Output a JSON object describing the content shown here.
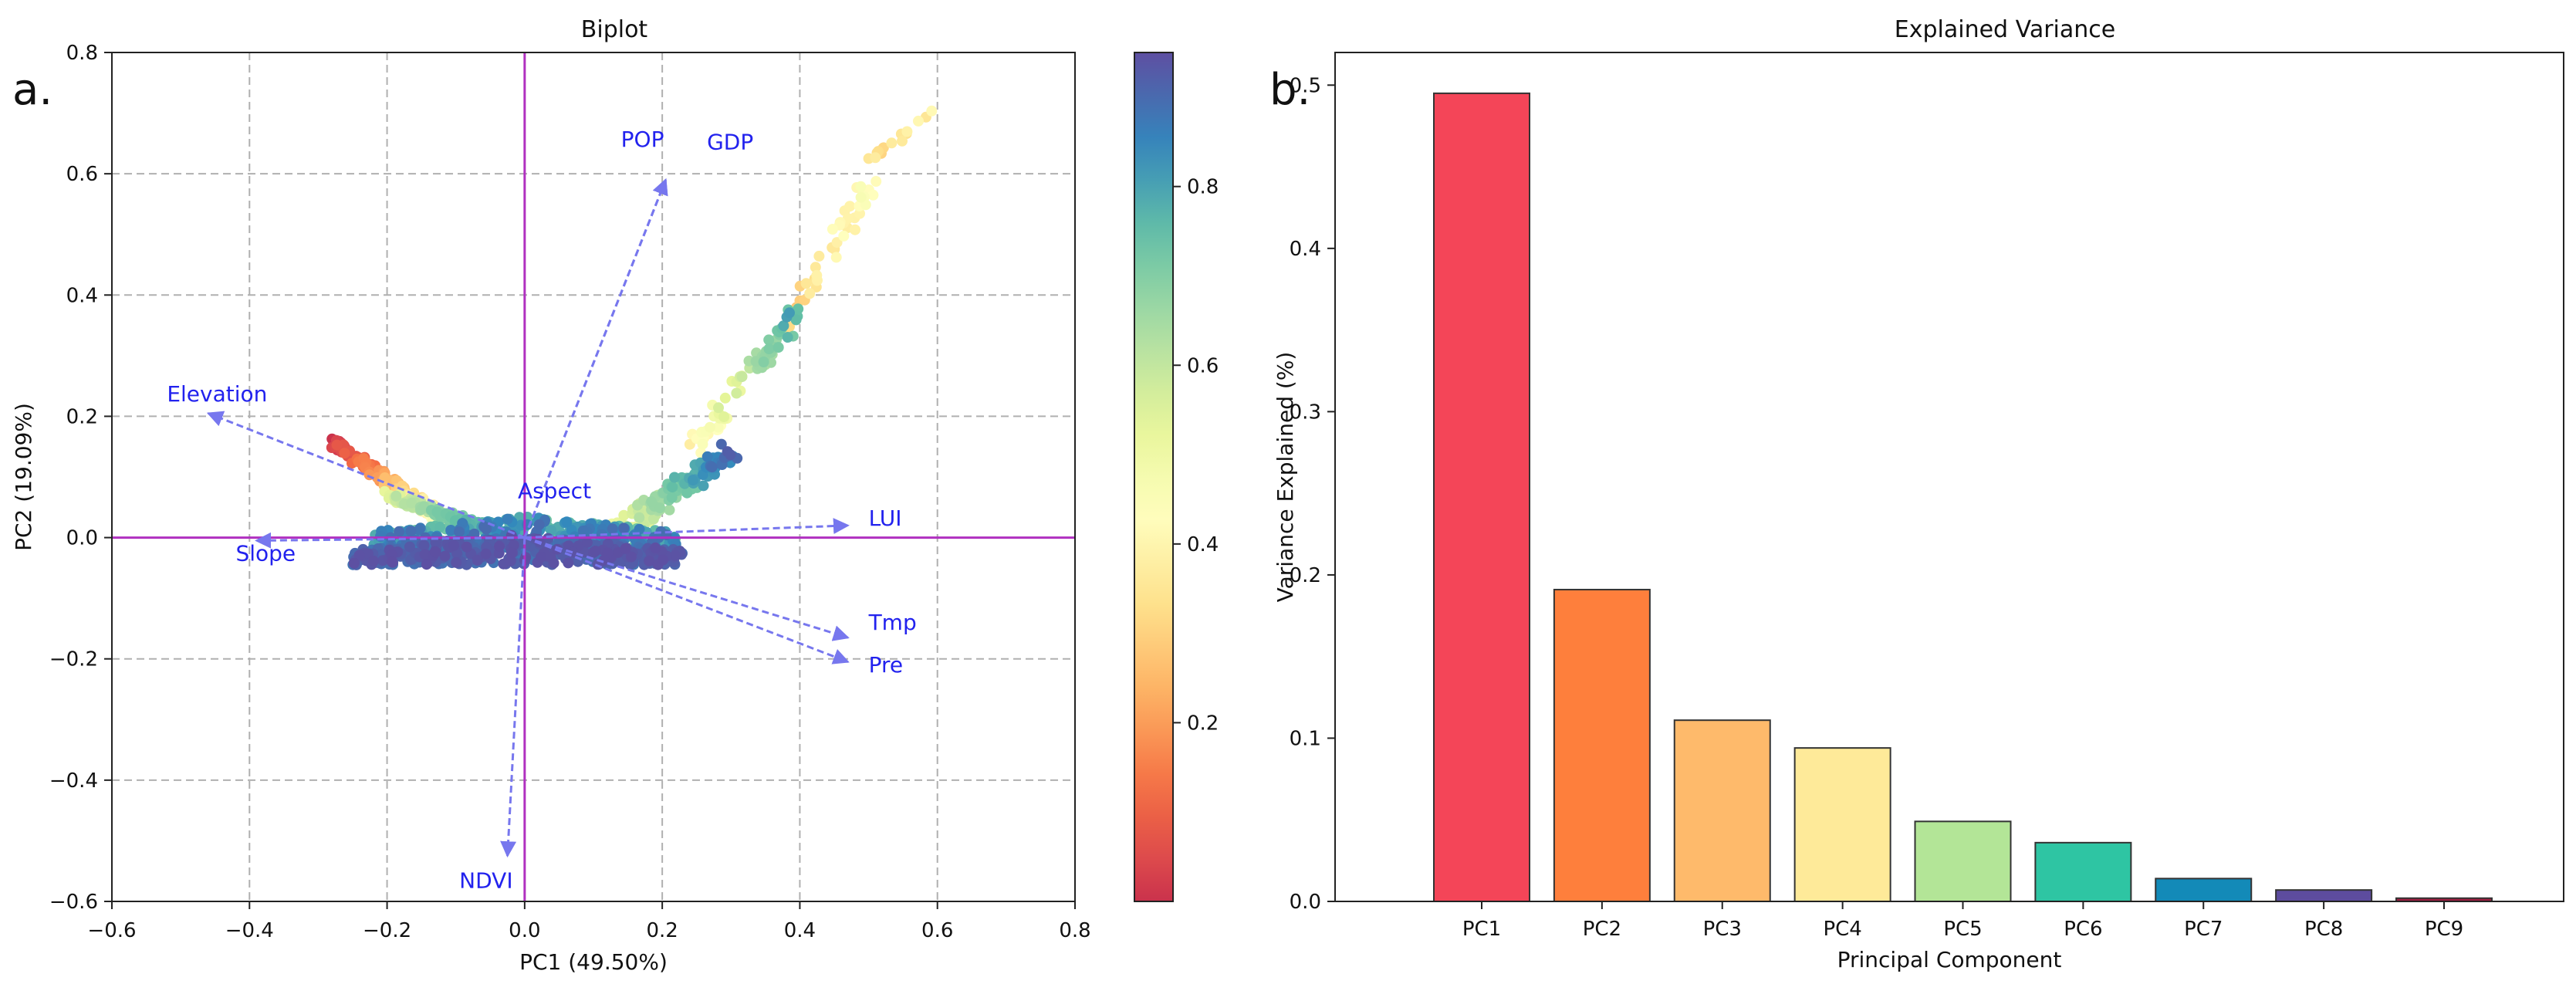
{
  "chart_data": [
    {
      "type": "scatter",
      "panel_label": "a.",
      "title": "Biplot",
      "xlabel": "PC1 (49.50%)",
      "ylabel": "PC2 (19.09%)",
      "xlim": [
        -0.6,
        0.8
      ],
      "ylim": [
        -0.6,
        0.8
      ],
      "xticks": [
        -0.6,
        -0.4,
        -0.2,
        0.0,
        0.2,
        0.4,
        0.6,
        0.8
      ],
      "yticks": [
        -0.6,
        -0.4,
        -0.2,
        0.0,
        0.2,
        0.4,
        0.6,
        0.8
      ],
      "xtick_labels": [
        "−0.6",
        "−0.4",
        "−0.2",
        "0.0",
        "0.2",
        "0.4",
        "0.6",
        "0.8"
      ],
      "ytick_labels": [
        "−0.6",
        "−0.4",
        "−0.2",
        "0.0",
        "0.2",
        "0.4",
        "0.6",
        "0.8"
      ],
      "grid": true,
      "zero_lines_color": "#b030c0",
      "arrow_color": "#7777ee",
      "label_color": "#2222ee",
      "colormap": "Spectral",
      "colorbar": {
        "range": [
          0.0,
          0.95
        ],
        "ticks": [
          0.2,
          0.4,
          0.6,
          0.8
        ],
        "tick_labels": [
          "0.2",
          "0.4",
          "0.6",
          "0.8"
        ]
      },
      "loadings": [
        {
          "name": "POP",
          "x": 0.205,
          "y": 0.59,
          "label_x": 0.14,
          "label_y": 0.645
        },
        {
          "name": "GDP",
          "x": 0.205,
          "y": 0.59,
          "label_x": 0.265,
          "label_y": 0.64
        },
        {
          "name": "Elevation",
          "x": -0.46,
          "y": 0.205,
          "label_x": -0.52,
          "label_y": 0.225
        },
        {
          "name": "Aspect",
          "x": 0.0,
          "y": 0.0,
          "label_x": -0.01,
          "label_y": 0.065
        },
        {
          "name": "LUI",
          "x": 0.47,
          "y": 0.02,
          "label_x": 0.5,
          "label_y": 0.02
        },
        {
          "name": "Slope",
          "x": -0.39,
          "y": -0.005,
          "label_x": -0.42,
          "label_y": -0.038
        },
        {
          "name": "Tmp",
          "x": 0.47,
          "y": -0.165,
          "label_x": 0.5,
          "label_y": -0.152
        },
        {
          "name": "Pre",
          "x": 0.47,
          "y": -0.205,
          "label_x": 0.5,
          "label_y": -0.222
        },
        {
          "name": "NDVI",
          "x": -0.025,
          "y": -0.525,
          "label_x": -0.095,
          "label_y": -0.578
        }
      ],
      "point_groups": [
        {
          "kind": "cloud",
          "x0": -0.25,
          "x1": 0.23,
          "y0": -0.045,
          "y1": 0.005,
          "n": 420,
          "c0": 0.88,
          "c1": 0.95
        },
        {
          "kind": "cloud",
          "x0": -0.22,
          "x1": 0.22,
          "y0": -0.015,
          "y1": 0.035,
          "n": 320,
          "c0": 0.72,
          "c1": 0.9
        },
        {
          "kind": "band",
          "x0": -0.28,
          "x1": -0.12,
          "y0": 0.155,
          "y1": 0.03,
          "n": 140,
          "c0": 0.0,
          "c1": 0.45,
          "spread": 0.018
        },
        {
          "kind": "band",
          "x0": -0.2,
          "x1": -0.02,
          "y0": 0.07,
          "y1": 0.0,
          "n": 120,
          "c0": 0.55,
          "c1": 0.85,
          "spread": 0.015
        },
        {
          "kind": "band",
          "x0": 0.12,
          "x1": 0.3,
          "y0": 0.0,
          "y1": 0.14,
          "n": 140,
          "c0": 0.45,
          "c1": 0.9,
          "spread": 0.03
        },
        {
          "kind": "band",
          "x0": 0.25,
          "x1": 0.4,
          "y0": 0.15,
          "y1": 0.38,
          "n": 70,
          "c0": 0.4,
          "c1": 0.8,
          "spread": 0.03
        },
        {
          "kind": "band",
          "x0": 0.38,
          "x1": 0.5,
          "y0": 0.35,
          "y1": 0.58,
          "n": 45,
          "c0": 0.3,
          "c1": 0.45,
          "spread": 0.025
        },
        {
          "kind": "band",
          "x0": 0.5,
          "x1": 0.6,
          "y0": 0.62,
          "y1": 0.71,
          "n": 14,
          "c0": 0.33,
          "c1": 0.4,
          "spread": 0.015
        }
      ]
    },
    {
      "type": "bar",
      "panel_label": "b.",
      "title": "Explained Variance",
      "xlabel": "Principal Component",
      "ylabel": "Variance Explained (%)",
      "ylim": [
        0.0,
        0.52
      ],
      "yticks": [
        0.0,
        0.1,
        0.2,
        0.3,
        0.4,
        0.5
      ],
      "ytick_labels": [
        "0.0",
        "0.1",
        "0.2",
        "0.3",
        "0.4",
        "0.5"
      ],
      "categories": [
        "PC1",
        "PC2",
        "PC3",
        "PC4",
        "PC5",
        "PC6",
        "PC7",
        "PC8",
        "PC9"
      ],
      "values": [
        0.495,
        0.191,
        0.111,
        0.094,
        0.049,
        0.036,
        0.014,
        0.007,
        0.002
      ],
      "colors": [
        "#f44558",
        "#fe7f3c",
        "#feba6b",
        "#feea99",
        "#b3e597",
        "#2ec5a3",
        "#138ab8",
        "#5d4c9e",
        "#9e1f41"
      ]
    }
  ]
}
